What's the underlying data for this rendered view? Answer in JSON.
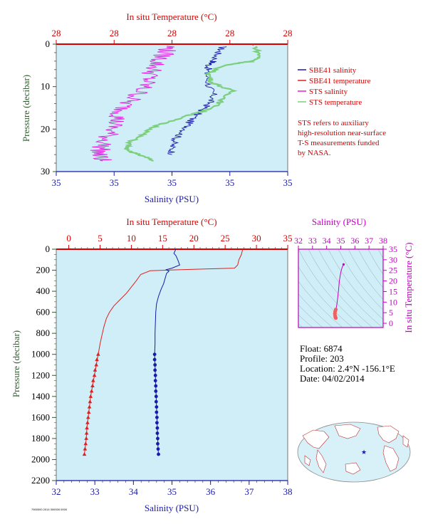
{
  "top_panel": {
    "x_top_label": "In situ Temperature (°C)",
    "x_bottom_label": "Salinity (PSU)",
    "y_label": "Pressure (decibar)"
  },
  "legend": {
    "items": [
      {
        "label": "SBE41 salinity",
        "color": "#1a1aa8"
      },
      {
        "label": "SBE41 temperature",
        "color": "#e02020"
      },
      {
        "label": "STS salinity",
        "color": "#e020e0"
      },
      {
        "label": "STS temperature",
        "color": "#7ccf7c"
      }
    ],
    "note_lines": [
      "STS refers to auxiliary",
      "high-resolution near-surface",
      "T-S measurements funded",
      "by NASA."
    ]
  },
  "main_panel": {
    "x_top_label": "In situ Temperature (°C)",
    "x_bottom_label": "Salinity (PSU)",
    "y_label": "Pressure (decibar)"
  },
  "ts_panel": {
    "x_top_label": "Salinity (PSU)",
    "y_right_label": "In situ Temperature (°C)"
  },
  "float_info": {
    "float": "Float:  6874",
    "profile": "Profile:  203",
    "location": "Location:  2.4°N  -156.1°E",
    "date": "Date:  04/02/2014"
  },
  "footer_tag": "7900000 2014 000000 0000",
  "colors": {
    "panel_bg": "#cfeef7",
    "temperature": "#e02020",
    "salinity": "#1a1aa8",
    "sts_salinity": "#e020e0",
    "sts_temperature": "#7ccf7c",
    "axis_red": "#d40000",
    "axis_blue": "#1a1aa8",
    "axis_green": "#2f5f2f",
    "ts_magenta": "#c000c0"
  },
  "chart_data": [
    {
      "type": "line",
      "name": "near-surface profile",
      "x_top_ticks": [
        "28",
        "28",
        "28",
        "28",
        "28"
      ],
      "x_bottom_ticks": [
        "35",
        "35",
        "35",
        "35",
        "35"
      ],
      "y_ticks": [
        0,
        10,
        20,
        30
      ],
      "ylim": [
        30,
        0
      ],
      "series": [
        {
          "name": "SBE41 salinity",
          "axis": "salinity_pos",
          "points": [
            [
              0.72,
              0.5
            ],
            [
              0.7,
              2
            ],
            [
              0.68,
              4
            ],
            [
              0.66,
              5
            ],
            [
              0.65,
              7
            ],
            [
              0.66,
              10
            ],
            [
              0.68,
              12
            ],
            [
              0.66,
              14
            ],
            [
              0.62,
              16
            ],
            [
              0.58,
              18
            ],
            [
              0.56,
              20
            ],
            [
              0.52,
              22
            ],
            [
              0.5,
              24
            ],
            [
              0.5,
              26
            ]
          ]
        },
        {
          "name": "SBE41 temperature",
          "axis": "temperature_pos",
          "points": [
            [
              0.85,
              0
            ],
            [
              0.85,
              0.3
            ]
          ]
        },
        {
          "name": "STS salinity",
          "axis": "salinity_pos",
          "points": [
            [
              0.49,
              0.5
            ],
            [
              0.47,
              2
            ],
            [
              0.44,
              4
            ],
            [
              0.42,
              6
            ],
            [
              0.4,
              8
            ],
            [
              0.38,
              10
            ],
            [
              0.35,
              12
            ],
            [
              0.3,
              14
            ],
            [
              0.28,
              16
            ],
            [
              0.26,
              18
            ],
            [
              0.24,
              20
            ],
            [
              0.22,
              22
            ],
            [
              0.2,
              24
            ],
            [
              0.18,
              26
            ],
            [
              0.2,
              27.5
            ]
          ]
        },
        {
          "name": "STS temperature",
          "axis": "temperature_pos",
          "points": [
            [
              0.86,
              0.5
            ],
            [
              0.88,
              3
            ],
            [
              0.85,
              4
            ],
            [
              0.72,
              5
            ],
            [
              0.66,
              7
            ],
            [
              0.67,
              9
            ],
            [
              0.76,
              11
            ],
            [
              0.72,
              13
            ],
            [
              0.68,
              15
            ],
            [
              0.56,
              17
            ],
            [
              0.44,
              19
            ],
            [
              0.38,
              21
            ],
            [
              0.32,
              23
            ],
            [
              0.3,
              25
            ],
            [
              0.36,
              26
            ],
            [
              0.42,
              27.5
            ]
          ]
        }
      ]
    },
    {
      "type": "line",
      "name": "full depth profile",
      "x_temperature_ticks": [
        0,
        5,
        10,
        15,
        20,
        25,
        30,
        35
      ],
      "x_salinity_ticks": [
        32,
        33,
        34,
        35,
        36,
        37,
        38
      ],
      "y_ticks": [
        0,
        200,
        400,
        600,
        800,
        1000,
        1200,
        1400,
        1600,
        1800,
        2000,
        2200
      ],
      "xlim_temperature": [
        -2,
        35
      ],
      "xlim_salinity": [
        32,
        38
      ],
      "ylim": [
        2200,
        0
      ],
      "series": [
        {
          "name": "Temperature",
          "axis": "temperature",
          "points": [
            [
              27.8,
              0
            ],
            [
              27.6,
              50
            ],
            [
              27.2,
              100
            ],
            [
              27.0,
              150
            ],
            [
              26.5,
              180
            ],
            [
              18,
              195
            ],
            [
              13,
              205
            ],
            [
              11.5,
              240
            ],
            [
              10.8,
              300
            ],
            [
              10,
              360
            ],
            [
              9.2,
              420
            ],
            [
              8.2,
              480
            ],
            [
              7.2,
              540
            ],
            [
              6.5,
              600
            ],
            [
              6.0,
              660
            ],
            [
              5.6,
              740
            ],
            [
              5.3,
              820
            ],
            [
              5.0,
              900
            ],
            [
              4.7,
              1000
            ],
            [
              4.4,
              1100
            ],
            [
              4.1,
              1200
            ],
            [
              3.8,
              1300
            ],
            [
              3.5,
              1400
            ],
            [
              3.3,
              1500
            ],
            [
              3.1,
              1600
            ],
            [
              2.9,
              1700
            ],
            [
              2.8,
              1800
            ],
            [
              2.6,
              1900
            ],
            [
              2.5,
              1950
            ]
          ]
        },
        {
          "name": "Salinity",
          "axis": "salinity",
          "points": [
            [
              35.1,
              0
            ],
            [
              35.05,
              40
            ],
            [
              35.1,
              60
            ],
            [
              35.15,
              100
            ],
            [
              35.2,
              150
            ],
            [
              35.0,
              180
            ],
            [
              34.85,
              195
            ],
            [
              34.92,
              210
            ],
            [
              34.86,
              230
            ],
            [
              34.82,
              280
            ],
            [
              34.78,
              330
            ],
            [
              34.72,
              380
            ],
            [
              34.65,
              450
            ],
            [
              34.6,
              520
            ],
            [
              34.58,
              600
            ],
            [
              34.57,
              700
            ],
            [
              34.56,
              800
            ],
            [
              34.56,
              900
            ],
            [
              34.55,
              1000
            ],
            [
              34.56,
              1100
            ],
            [
              34.57,
              1200
            ],
            [
              34.58,
              1300
            ],
            [
              34.59,
              1400
            ],
            [
              34.6,
              1500
            ],
            [
              34.61,
              1600
            ],
            [
              34.62,
              1700
            ],
            [
              34.63,
              1800
            ],
            [
              34.64,
              1900
            ],
            [
              34.65,
              1950
            ]
          ]
        }
      ],
      "markers": {
        "temperature": [
          [
            4.7,
            1000
          ],
          [
            4.5,
            1050
          ],
          [
            4.4,
            1100
          ],
          [
            4.2,
            1150
          ],
          [
            4.1,
            1200
          ],
          [
            3.9,
            1250
          ],
          [
            3.8,
            1300
          ],
          [
            3.65,
            1350
          ],
          [
            3.5,
            1400
          ],
          [
            3.4,
            1450
          ],
          [
            3.3,
            1500
          ],
          [
            3.2,
            1550
          ],
          [
            3.1,
            1600
          ],
          [
            3.0,
            1650
          ],
          [
            2.9,
            1700
          ],
          [
            2.85,
            1750
          ],
          [
            2.8,
            1800
          ],
          [
            2.7,
            1850
          ],
          [
            2.6,
            1900
          ],
          [
            2.5,
            1950
          ]
        ],
        "salinity": [
          [
            34.55,
            1000
          ],
          [
            34.55,
            1050
          ],
          [
            34.56,
            1100
          ],
          [
            34.56,
            1150
          ],
          [
            34.57,
            1200
          ],
          [
            34.57,
            1250
          ],
          [
            34.58,
            1300
          ],
          [
            34.58,
            1350
          ],
          [
            34.59,
            1400
          ],
          [
            34.59,
            1450
          ],
          [
            34.6,
            1500
          ],
          [
            34.6,
            1550
          ],
          [
            34.61,
            1600
          ],
          [
            34.61,
            1650
          ],
          [
            34.62,
            1700
          ],
          [
            34.62,
            1750
          ],
          [
            34.63,
            1800
          ],
          [
            34.63,
            1850
          ],
          [
            34.64,
            1900
          ],
          [
            34.65,
            1950
          ]
        ]
      }
    },
    {
      "type": "scatter",
      "name": "T-S diagram",
      "x_ticks": [
        32,
        33,
        34,
        35,
        36,
        37,
        38
      ],
      "y_ticks": [
        0,
        5,
        10,
        15,
        20,
        25,
        30,
        35
      ],
      "xlim": [
        32,
        38
      ],
      "ylim": [
        -2,
        35
      ],
      "series": [
        {
          "name": "profile",
          "points": [
            [
              35.2,
              27.8
            ],
            [
              35.1,
              26.5
            ],
            [
              35.0,
              24
            ],
            [
              34.9,
              20
            ],
            [
              34.85,
              16
            ],
            [
              34.8,
              13
            ],
            [
              34.75,
              10
            ],
            [
              34.7,
              8
            ],
            [
              34.65,
              6.5
            ],
            [
              34.6,
              5.5
            ],
            [
              34.58,
              4.5
            ],
            [
              34.6,
              3.5
            ],
            [
              34.62,
              2.8
            ],
            [
              34.65,
              2.5
            ]
          ]
        }
      ]
    }
  ]
}
